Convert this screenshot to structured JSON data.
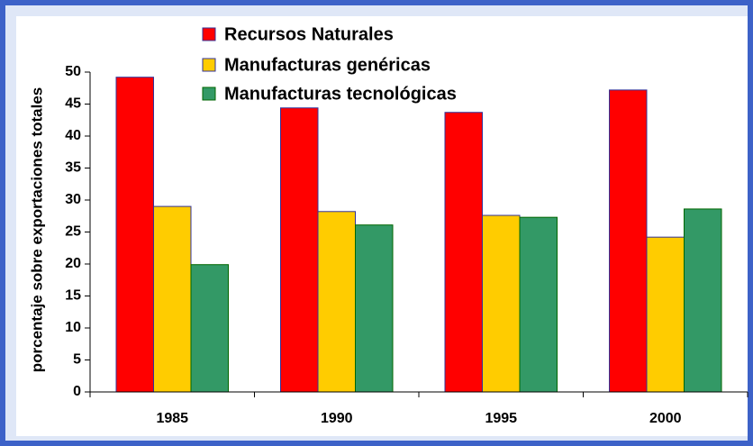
{
  "chart_data": {
    "type": "bar",
    "y_label": "porcentaje sobre exportaciones totales",
    "categories": [
      "1985",
      "1990",
      "1995",
      "2000"
    ],
    "series": [
      {
        "name": "Recursos Naturales",
        "color": "#ff0000",
        "values": [
          49.2,
          44.4,
          43.7,
          47.2
        ]
      },
      {
        "name": "Manufacturas genéricas",
        "color": "#ffcc00",
        "values": [
          29.0,
          28.2,
          27.6,
          24.2
        ]
      },
      {
        "name": "Manufacturas tecnológicas",
        "color": "#339966",
        "values": [
          19.9,
          26.1,
          27.3,
          28.6
        ]
      }
    ],
    "ylim": [
      0,
      50
    ],
    "yticks": [
      0,
      5,
      10,
      15,
      20,
      25,
      30,
      35,
      40,
      45,
      50
    ],
    "grid": false
  }
}
